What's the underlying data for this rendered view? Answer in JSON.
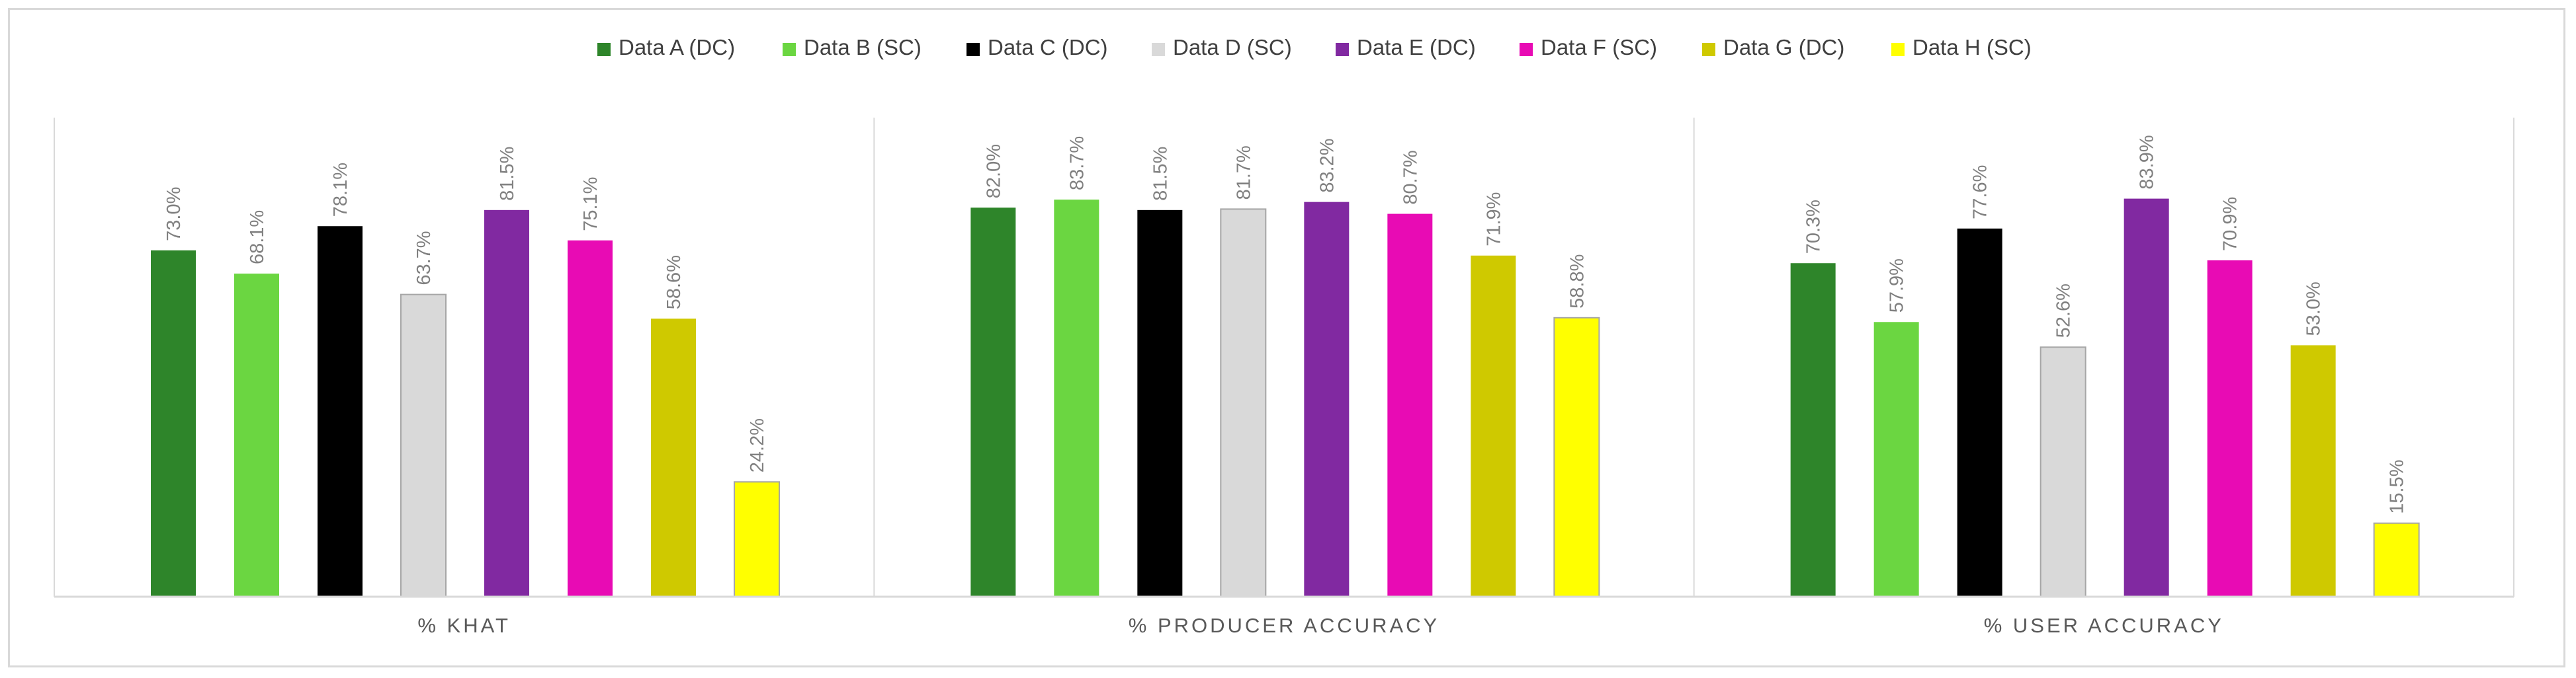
{
  "chart_data": {
    "type": "bar",
    "title": "",
    "xlabel": "",
    "ylabel": "",
    "categories": [
      "% KHAT",
      "% PRODUCER ACCURACY",
      "% USER ACCURACY"
    ],
    "series": [
      {
        "name": "Data A (DC)",
        "color": "#2e852a",
        "values": [
          73.0,
          82.0,
          70.3
        ],
        "labels": [
          "73.0%",
          "82.0%",
          "70.3%"
        ]
      },
      {
        "name": "Data B (SC)",
        "color": "#6bd641",
        "values": [
          68.1,
          83.7,
          57.9
        ],
        "labels": [
          "68.1%",
          "83.7%",
          "57.9%"
        ]
      },
      {
        "name": "Data C (DC)",
        "color": "#000000",
        "values": [
          78.1,
          81.5,
          77.6
        ],
        "labels": [
          "78.1%",
          "81.5%",
          "77.6%"
        ]
      },
      {
        "name": "Data D (SC)",
        "color": "#d9d9d9",
        "values": [
          63.7,
          81.7,
          52.6
        ],
        "labels": [
          "63.7%",
          "81.7%",
          "52.6%"
        ]
      },
      {
        "name": "Data E (DC)",
        "color": "#8129a1",
        "values": [
          81.5,
          83.2,
          83.9
        ],
        "labels": [
          "81.5%",
          "83.2%",
          "83.9%"
        ]
      },
      {
        "name": "Data F (SC)",
        "color": "#e80bb4",
        "values": [
          75.1,
          80.7,
          70.9
        ],
        "labels": [
          "75.1%",
          "80.7%",
          "70.9%"
        ]
      },
      {
        "name": "Data G (DC)",
        "color": "#cfc900",
        "values": [
          58.6,
          71.9,
          53.0
        ],
        "labels": [
          "58.6%",
          "71.9%",
          "53.0%"
        ]
      },
      {
        "name": "Data H (SC)",
        "color": "#ffff00",
        "values": [
          24.2,
          58.8,
          15.5
        ],
        "labels": [
          "24.2%",
          "58.8%",
          "15.5%"
        ]
      }
    ],
    "ylim": [
      0,
      100
    ],
    "grid": false,
    "legend_position": "top-center"
  }
}
